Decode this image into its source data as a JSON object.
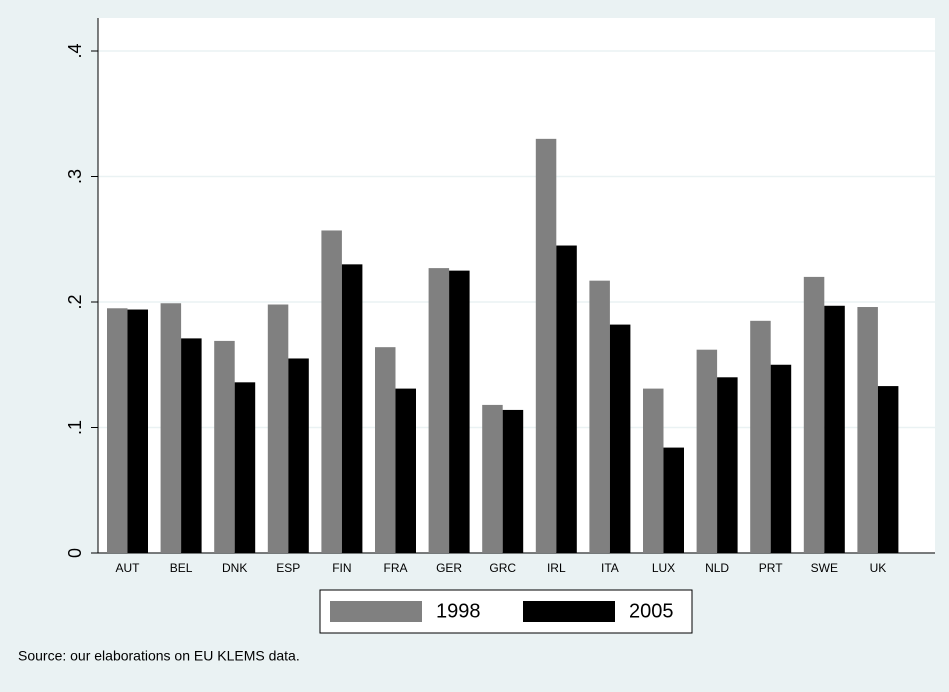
{
  "chart_data": {
    "type": "bar",
    "categories": [
      "AUT",
      "BEL",
      "DNK",
      "ESP",
      "FIN",
      "FRA",
      "GER",
      "GRC",
      "IRL",
      "ITA",
      "LUX",
      "NLD",
      "PRT",
      "SWE",
      "UK"
    ],
    "series": [
      {
        "name": "1998",
        "color": "#808080",
        "values": [
          0.195,
          0.199,
          0.169,
          0.198,
          0.257,
          0.164,
          0.227,
          0.118,
          0.33,
          0.217,
          0.131,
          0.162,
          0.185,
          0.22,
          0.196
        ]
      },
      {
        "name": "2005",
        "color": "#000000",
        "values": [
          0.194,
          0.171,
          0.136,
          0.155,
          0.23,
          0.131,
          0.225,
          0.114,
          0.245,
          0.182,
          0.084,
          0.14,
          0.15,
          0.197,
          0.133
        ]
      }
    ],
    "ylim": [
      0,
      0.4
    ],
    "yticks": [
      0,
      {
        "value": 0.1,
        "label": ".1"
      },
      {
        "value": 0.2,
        "label": ".2"
      },
      {
        "value": 0.3,
        "label": ".3"
      },
      {
        "value": 0.4,
        "label": ".4"
      }
    ],
    "grid": true,
    "legend": "bottom",
    "note": "Source: our elaborations on EU KLEMS data."
  }
}
